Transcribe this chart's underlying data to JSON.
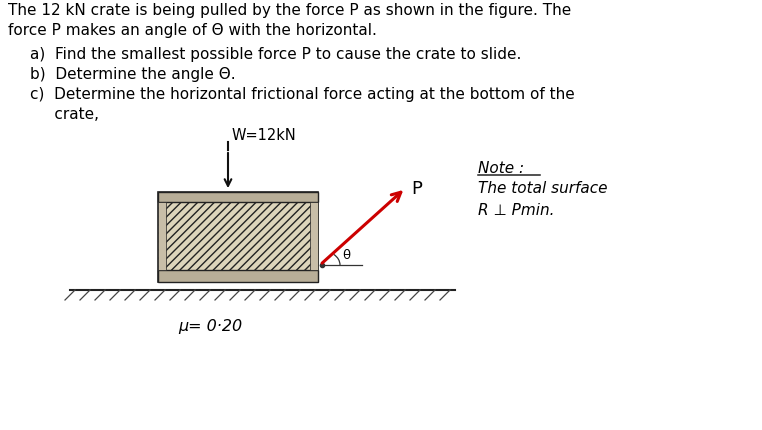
{
  "bg_color": "#ffffff",
  "text_color": "#000000",
  "title_line1": "The 12 kN crate is being pulled by the force P as shown in the figure. The",
  "title_line2": "force P makes an angle of Θ with the horizontal.",
  "bullet_a": "a)  Find the smallest possible force P to cause the crate to slide.",
  "bullet_b": "b)  Determine the angle Θ.",
  "bullet_c_line1": "c)  Determine the horizontal frictional force acting at the bottom of the",
  "bullet_c_line2": "     crate,",
  "w_label": "W=12kN",
  "p_label": "P",
  "theta_label": "θ",
  "mu_label": "μ= 0·20",
  "note_line1": "Note :",
  "note_line2": "The total surface",
  "note_line3": "R ⊥ Pmin.",
  "arrow_color": "#cc0000",
  "crate_fill": "#e8e0cc",
  "crate_edge": "#222222",
  "ground_line_color": "#222222",
  "hatch_color": "#555555"
}
